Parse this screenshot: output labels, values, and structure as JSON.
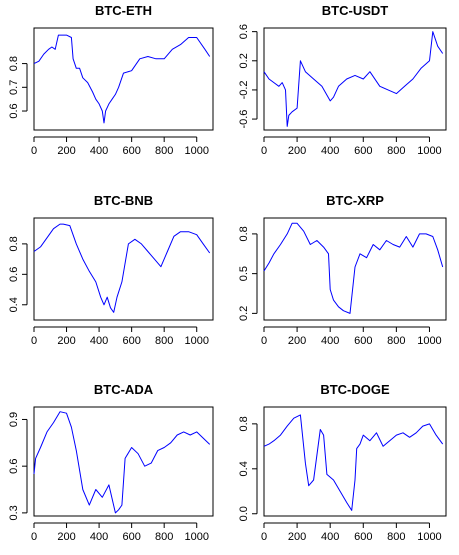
{
  "colors": {
    "line": "#0000ff",
    "text": "#000000",
    "background": "#ffffff"
  },
  "chart_data": [
    {
      "type": "line",
      "title": "BTC-ETH",
      "xlabel": "",
      "ylabel": "",
      "xlim": [
        0,
        1100
      ],
      "ylim": [
        0.52,
        0.95
      ],
      "xticks": [
        0,
        200,
        400,
        600,
        800,
        1000
      ],
      "yticks": [
        0.6,
        0.7,
        0.8
      ],
      "series": [
        {
          "x": [
            0,
            30,
            60,
            90,
            110,
            130,
            150,
            170,
            200,
            230,
            240,
            260,
            280,
            300,
            330,
            360,
            380,
            400,
            420,
            430,
            440,
            460,
            480,
            500,
            520,
            550,
            600,
            650,
            700,
            750,
            800,
            850,
            900,
            950,
            1000,
            1050,
            1080
          ],
          "y": [
            0.8,
            0.81,
            0.84,
            0.86,
            0.87,
            0.86,
            0.92,
            0.92,
            0.92,
            0.91,
            0.82,
            0.78,
            0.78,
            0.74,
            0.72,
            0.68,
            0.65,
            0.63,
            0.6,
            0.55,
            0.6,
            0.63,
            0.65,
            0.67,
            0.7,
            0.76,
            0.77,
            0.82,
            0.83,
            0.82,
            0.82,
            0.86,
            0.88,
            0.91,
            0.91,
            0.86,
            0.83
          ]
        }
      ]
    },
    {
      "type": "line",
      "title": "BTC-USDT",
      "xlabel": "",
      "ylabel": "",
      "xlim": [
        0,
        1100
      ],
      "ylim": [
        -0.75,
        0.65
      ],
      "xticks": [
        0,
        200,
        400,
        600,
        800,
        1000
      ],
      "yticks": [
        -0.6,
        -0.2,
        0.2,
        0.6
      ],
      "series": [
        {
          "x": [
            0,
            30,
            60,
            90,
            110,
            130,
            140,
            150,
            170,
            200,
            220,
            250,
            300,
            350,
            400,
            420,
            450,
            500,
            550,
            600,
            640,
            700,
            750,
            800,
            850,
            900,
            950,
            1000,
            1020,
            1050,
            1080
          ],
          "y": [
            0.05,
            -0.05,
            -0.1,
            -0.15,
            -0.1,
            -0.2,
            -0.7,
            -0.55,
            -0.5,
            -0.45,
            0.2,
            0.05,
            -0.05,
            -0.15,
            -0.35,
            -0.3,
            -0.15,
            -0.05,
            0.0,
            -0.05,
            0.05,
            -0.15,
            -0.2,
            -0.25,
            -0.15,
            -0.05,
            0.1,
            0.2,
            0.6,
            0.4,
            0.3
          ]
        }
      ]
    },
    {
      "type": "line",
      "title": "BTC-BNB",
      "xlabel": "",
      "ylabel": "",
      "xlim": [
        0,
        1100
      ],
      "ylim": [
        0.3,
        0.97
      ],
      "xticks": [
        0,
        200,
        400,
        600,
        800,
        1000
      ],
      "yticks": [
        0.4,
        0.6,
        0.8
      ],
      "series": [
        {
          "x": [
            0,
            40,
            80,
            120,
            160,
            180,
            220,
            260,
            300,
            340,
            380,
            410,
            430,
            450,
            470,
            490,
            510,
            540,
            580,
            620,
            660,
            700,
            740,
            780,
            820,
            860,
            900,
            950,
            1000,
            1040,
            1080
          ],
          "y": [
            0.75,
            0.78,
            0.84,
            0.9,
            0.93,
            0.93,
            0.92,
            0.8,
            0.7,
            0.62,
            0.55,
            0.45,
            0.4,
            0.45,
            0.38,
            0.35,
            0.45,
            0.55,
            0.8,
            0.83,
            0.8,
            0.75,
            0.7,
            0.65,
            0.75,
            0.85,
            0.88,
            0.88,
            0.86,
            0.8,
            0.74
          ]
        }
      ]
    },
    {
      "type": "line",
      "title": "BTC-XRP",
      "xlabel": "",
      "ylabel": "",
      "xlim": [
        0,
        1100
      ],
      "ylim": [
        0.15,
        0.92
      ],
      "xticks": [
        0,
        200,
        400,
        600,
        800,
        1000
      ],
      "yticks": [
        0.2,
        0.5,
        0.8
      ],
      "series": [
        {
          "x": [
            0,
            30,
            60,
            100,
            140,
            170,
            200,
            240,
            280,
            320,
            360,
            390,
            400,
            420,
            450,
            480,
            520,
            550,
            580,
            620,
            660,
            700,
            740,
            780,
            820,
            860,
            900,
            940,
            980,
            1020,
            1050,
            1080
          ],
          "y": [
            0.52,
            0.58,
            0.65,
            0.72,
            0.8,
            0.88,
            0.88,
            0.82,
            0.72,
            0.75,
            0.7,
            0.65,
            0.38,
            0.3,
            0.25,
            0.22,
            0.2,
            0.55,
            0.65,
            0.62,
            0.72,
            0.68,
            0.75,
            0.72,
            0.7,
            0.78,
            0.7,
            0.8,
            0.8,
            0.78,
            0.68,
            0.55
          ]
        }
      ]
    },
    {
      "type": "line",
      "title": "BTC-ADA",
      "xlabel": "",
      "ylabel": "",
      "xlim": [
        0,
        1100
      ],
      "ylim": [
        0.28,
        0.98
      ],
      "xticks": [
        0,
        200,
        400,
        600,
        800,
        1000
      ],
      "yticks": [
        0.3,
        0.6,
        0.9
      ],
      "series": [
        {
          "x": [
            0,
            10,
            40,
            80,
            120,
            160,
            200,
            230,
            260,
            300,
            340,
            380,
            420,
            460,
            500,
            520,
            540,
            560,
            600,
            640,
            680,
            720,
            760,
            800,
            840,
            880,
            920,
            960,
            1000,
            1040,
            1080
          ],
          "y": [
            0.55,
            0.65,
            0.72,
            0.82,
            0.88,
            0.95,
            0.94,
            0.85,
            0.7,
            0.45,
            0.35,
            0.45,
            0.4,
            0.48,
            0.3,
            0.32,
            0.35,
            0.65,
            0.72,
            0.68,
            0.6,
            0.62,
            0.7,
            0.72,
            0.75,
            0.8,
            0.82,
            0.8,
            0.82,
            0.78,
            0.74
          ]
        }
      ]
    },
    {
      "type": "line",
      "title": "BTC-DOGE",
      "xlabel": "",
      "ylabel": "",
      "xlim": [
        0,
        1100
      ],
      "ylim": [
        -0.02,
        0.95
      ],
      "xticks": [
        0,
        200,
        400,
        600,
        800,
        1000
      ],
      "yticks": [
        0.0,
        0.4,
        0.8
      ],
      "series": [
        {
          "x": [
            0,
            30,
            60,
            100,
            140,
            180,
            220,
            250,
            270,
            300,
            340,
            360,
            380,
            420,
            460,
            500,
            530,
            550,
            560,
            580,
            600,
            640,
            680,
            720,
            760,
            800,
            840,
            880,
            920,
            960,
            1000,
            1040,
            1080
          ],
          "y": [
            0.6,
            0.62,
            0.65,
            0.7,
            0.78,
            0.85,
            0.88,
            0.45,
            0.25,
            0.3,
            0.75,
            0.7,
            0.35,
            0.3,
            0.2,
            0.1,
            0.03,
            0.3,
            0.58,
            0.62,
            0.7,
            0.65,
            0.72,
            0.6,
            0.65,
            0.7,
            0.72,
            0.68,
            0.72,
            0.78,
            0.8,
            0.7,
            0.62
          ]
        }
      ]
    }
  ]
}
